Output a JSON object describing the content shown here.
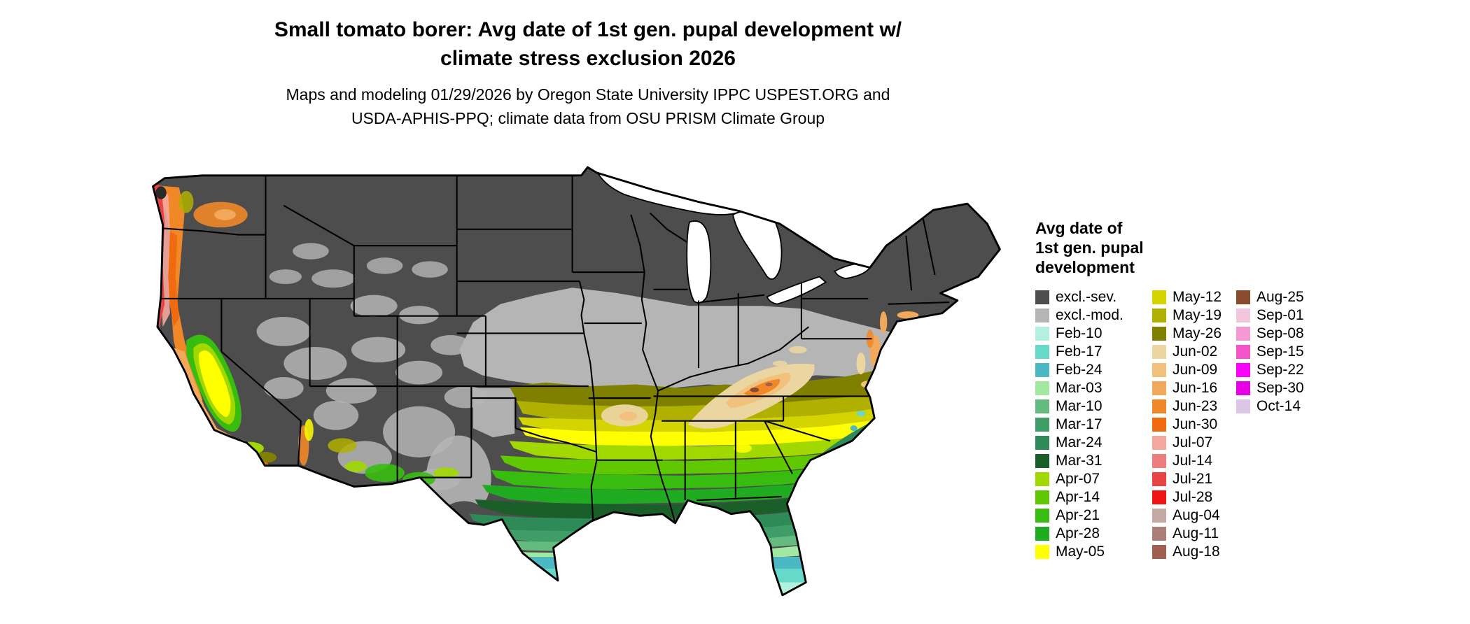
{
  "title": {
    "line1": "Small tomato borer: Avg date of 1st gen. pupal development w/",
    "line2": "climate stress exclusion 2026"
  },
  "subtitle": {
    "line1": "Maps and modeling 01/29/2026 by Oregon State University IPPC USPEST.ORG and",
    "line2": "USDA-APHIS-PPQ; climate data from OSU PRISM Climate Group"
  },
  "legend": {
    "title_lines": [
      "Avg date of",
      "1st gen. pupal",
      "development"
    ],
    "columns": [
      [
        {
          "label": "excl.-sev.",
          "color": "#4d4d4d"
        },
        {
          "label": "excl.-mod.",
          "color": "#b5b5b5"
        },
        {
          "label": "Feb-10",
          "color": "#b3f0e0"
        },
        {
          "label": "Feb-17",
          "color": "#66d9c9"
        },
        {
          "label": "Feb-24",
          "color": "#4cb8c4"
        },
        {
          "label": "Mar-03",
          "color": "#a1e8a1"
        },
        {
          "label": "Mar-10",
          "color": "#63bb80"
        },
        {
          "label": "Mar-17",
          "color": "#3f9e68"
        },
        {
          "label": "Mar-24",
          "color": "#2e8b57"
        },
        {
          "label": "Mar-31",
          "color": "#1a5e2a"
        },
        {
          "label": "Apr-07",
          "color": "#a0d800"
        },
        {
          "label": "Apr-14",
          "color": "#60c800"
        },
        {
          "label": "Apr-21",
          "color": "#38bc10"
        },
        {
          "label": "Apr-28",
          "color": "#20ac20"
        },
        {
          "label": "May-05",
          "color": "#ffff00"
        }
      ],
      [
        {
          "label": "May-12",
          "color": "#d4d400"
        },
        {
          "label": "May-19",
          "color": "#b0b000"
        },
        {
          "label": "May-26",
          "color": "#808000"
        },
        {
          "label": "Jun-02",
          "color": "#ebd5a0"
        },
        {
          "label": "Jun-09",
          "color": "#f2c27d"
        },
        {
          "label": "Jun-16",
          "color": "#f2a85a"
        },
        {
          "label": "Jun-23",
          "color": "#f08828"
        },
        {
          "label": "Jun-30",
          "color": "#f06a10"
        },
        {
          "label": "Jul-07",
          "color": "#f4a8a0"
        },
        {
          "label": "Jul-14",
          "color": "#ee7d7d"
        },
        {
          "label": "Jul-21",
          "color": "#e84444"
        },
        {
          "label": "Jul-28",
          "color": "#f01414"
        },
        {
          "label": "Aug-04",
          "color": "#c4a8a4"
        },
        {
          "label": "Aug-11",
          "color": "#ab8078"
        },
        {
          "label": "Aug-18",
          "color": "#a06050"
        }
      ],
      [
        {
          "label": "Aug-25",
          "color": "#8a4a30"
        },
        {
          "label": "Sep-01",
          "color": "#f2c6de"
        },
        {
          "label": "Sep-08",
          "color": "#f49ad2"
        },
        {
          "label": "Sep-15",
          "color": "#f554cb"
        },
        {
          "label": "Sep-22",
          "color": "#ff00ff"
        },
        {
          "label": "Sep-30",
          "color": "#e600e6"
        },
        {
          "label": "Oct-14",
          "color": "#dcc6e8"
        }
      ]
    ]
  }
}
